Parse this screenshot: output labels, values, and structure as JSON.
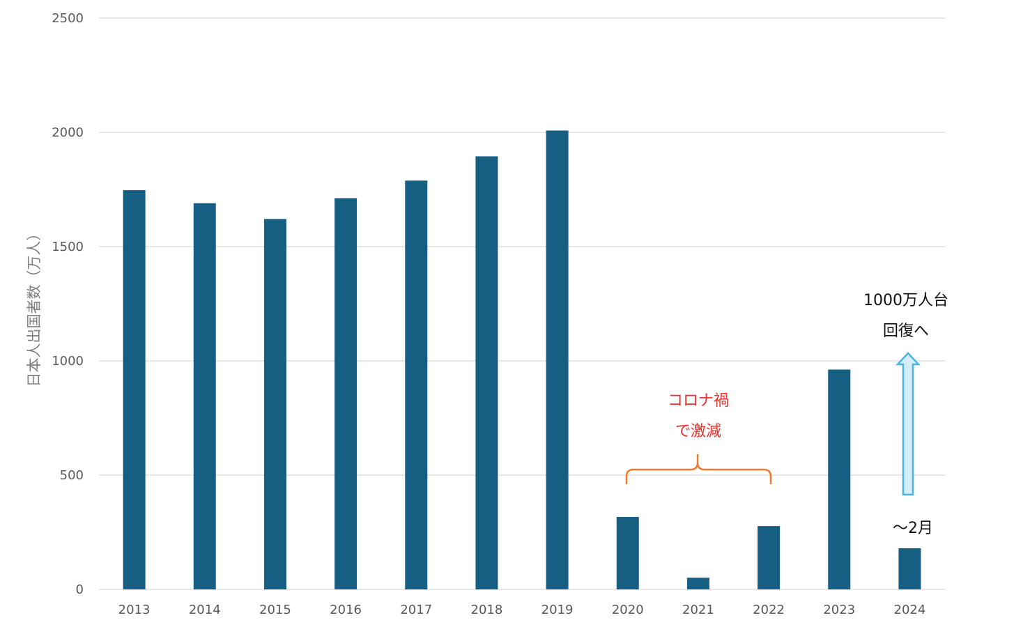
{
  "chart_data": {
    "type": "bar",
    "ylabel": "日本人出国者数（万人）",
    "ylim": [
      0,
      2500
    ],
    "yticks": [
      0,
      500,
      1000,
      1500,
      2000,
      2500
    ],
    "grid": true,
    "categories": [
      "2013",
      "2014",
      "2015",
      "2016",
      "2017",
      "2018",
      "2019",
      "2020",
      "2021",
      "2022",
      "2023",
      "2024"
    ],
    "values": [
      1747,
      1690,
      1621,
      1712,
      1789,
      1895,
      2008,
      317,
      51,
      277,
      962,
      180
    ],
    "bar_color": "#175f82",
    "annotations": {
      "corona_line1": "コロナ禍",
      "corona_line2": "で激減",
      "corona_color": "#e8322d",
      "brace_color": "#f07a2a",
      "recovery_line1": "1000万人台",
      "recovery_line2": "回復へ",
      "arrow_color": "#4ab4e6",
      "arrow_fill": "#d6eef9",
      "partial_label": "～2月"
    }
  }
}
